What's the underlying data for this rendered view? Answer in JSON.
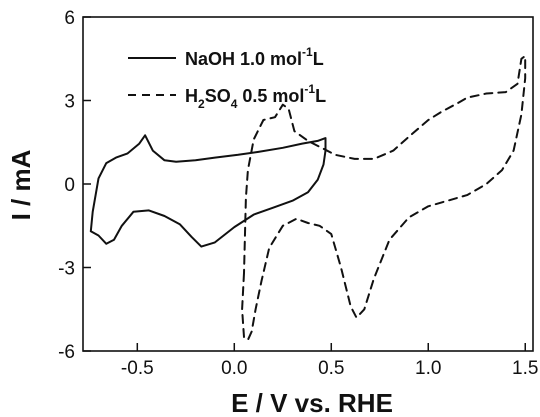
{
  "chart_data": {
    "type": "line",
    "xlabel": "E / V vs. RHE",
    "ylabel": "I / mA",
    "xlim": [
      -0.78,
      1.54
    ],
    "ylim": [
      -6,
      6
    ],
    "xticks": [
      "-0.5",
      "0.0",
      "0.5",
      "1.0",
      "1.5"
    ],
    "xtick_values": [
      -0.5,
      0.0,
      0.5,
      1.0,
      1.5
    ],
    "yticks": [
      "-6",
      "-3",
      "0",
      "3",
      "6"
    ],
    "ytick_values": [
      -6,
      -3,
      0,
      3,
      6
    ],
    "grid": false,
    "legend_position": "top-left",
    "series": [
      {
        "name": "NaOH 1.0 mol/L",
        "legend_parts": {
          "main": "NaOH  1.0 mol",
          "sup": "-1",
          "tail": "L"
        },
        "style": "solid",
        "color": "#111111",
        "points": [
          [
            0.47,
            1.65
          ],
          [
            0.43,
            1.55
          ],
          [
            0.35,
            1.45
          ],
          [
            0.25,
            1.3
          ],
          [
            0.12,
            1.15
          ],
          [
            0.02,
            1.05
          ],
          [
            -0.1,
            0.95
          ],
          [
            -0.2,
            0.85
          ],
          [
            -0.3,
            0.8
          ],
          [
            -0.36,
            0.85
          ],
          [
            -0.42,
            1.2
          ],
          [
            -0.46,
            1.75
          ],
          [
            -0.49,
            1.45
          ],
          [
            -0.55,
            1.1
          ],
          [
            -0.61,
            0.95
          ],
          [
            -0.66,
            0.75
          ],
          [
            -0.7,
            0.2
          ],
          [
            -0.73,
            -1.0
          ],
          [
            -0.74,
            -1.7
          ],
          [
            -0.7,
            -1.85
          ],
          [
            -0.66,
            -2.15
          ],
          [
            -0.62,
            -2.0
          ],
          [
            -0.58,
            -1.5
          ],
          [
            -0.52,
            -1.0
          ],
          [
            -0.44,
            -0.95
          ],
          [
            -0.36,
            -1.15
          ],
          [
            -0.28,
            -1.45
          ],
          [
            -0.22,
            -1.9
          ],
          [
            -0.17,
            -2.25
          ],
          [
            -0.1,
            -2.1
          ],
          [
            0.0,
            -1.55
          ],
          [
            0.1,
            -1.1
          ],
          [
            0.2,
            -0.85
          ],
          [
            0.3,
            -0.6
          ],
          [
            0.38,
            -0.3
          ],
          [
            0.43,
            0.15
          ],
          [
            0.46,
            0.7
          ],
          [
            0.47,
            1.2
          ],
          [
            0.47,
            1.65
          ]
        ]
      },
      {
        "name": "H2SO4 0.5 mol/L",
        "legend_parts": {
          "h": "H",
          "sub1": "2",
          "so": "SO",
          "sub2": "4",
          "conc": " 0.5 mol",
          "sup": "-1",
          "tail": "L"
        },
        "style": "dashed",
        "color": "#111111",
        "points": [
          [
            0.05,
            -3.2
          ],
          [
            0.04,
            -4.5
          ],
          [
            0.05,
            -5.5
          ],
          [
            0.07,
            -5.6
          ],
          [
            0.09,
            -5.3
          ],
          [
            0.11,
            -4.5
          ],
          [
            0.14,
            -3.5
          ],
          [
            0.18,
            -2.3
          ],
          [
            0.25,
            -1.5
          ],
          [
            0.32,
            -1.25
          ],
          [
            0.38,
            -1.4
          ],
          [
            0.44,
            -1.5
          ],
          [
            0.5,
            -1.8
          ],
          [
            0.55,
            -3.0
          ],
          [
            0.6,
            -4.4
          ],
          [
            0.63,
            -4.8
          ],
          [
            0.67,
            -4.5
          ],
          [
            0.72,
            -3.4
          ],
          [
            0.8,
            -2.0
          ],
          [
            0.9,
            -1.2
          ],
          [
            1.0,
            -0.8
          ],
          [
            1.1,
            -0.6
          ],
          [
            1.2,
            -0.4
          ],
          [
            1.3,
            0.0
          ],
          [
            1.38,
            0.5
          ],
          [
            1.44,
            1.2
          ],
          [
            1.48,
            2.5
          ],
          [
            1.5,
            3.8
          ],
          [
            1.5,
            4.6
          ],
          [
            1.48,
            4.5
          ],
          [
            1.46,
            3.6
          ],
          [
            1.4,
            3.3
          ],
          [
            1.3,
            3.25
          ],
          [
            1.2,
            3.1
          ],
          [
            1.15,
            2.9
          ],
          [
            1.07,
            2.6
          ],
          [
            1.0,
            2.3
          ],
          [
            0.9,
            1.7
          ],
          [
            0.82,
            1.2
          ],
          [
            0.72,
            0.9
          ],
          [
            0.62,
            0.9
          ],
          [
            0.52,
            1.05
          ],
          [
            0.45,
            1.3
          ],
          [
            0.38,
            1.55
          ],
          [
            0.31,
            1.9
          ],
          [
            0.28,
            2.7
          ],
          [
            0.25,
            2.85
          ],
          [
            0.21,
            2.4
          ],
          [
            0.15,
            2.3
          ],
          [
            0.1,
            1.6
          ],
          [
            0.07,
            0.5
          ],
          [
            0.06,
            -0.5
          ],
          [
            0.05,
            -3.2
          ]
        ]
      }
    ]
  }
}
